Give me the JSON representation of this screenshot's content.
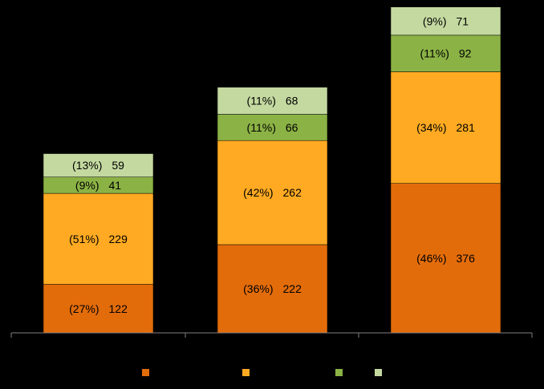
{
  "chart_data": {
    "type": "bar",
    "stacked": true,
    "categories": [
      "",
      "",
      ""
    ],
    "series": [
      {
        "values": [
          122,
          222,
          376
        ],
        "percent_labels": [
          "(27%)",
          "(36%)",
          "(46%)"
        ],
        "color": "#E36C0A"
      },
      {
        "values": [
          229,
          262,
          281
        ],
        "percent_labels": [
          "(51%)",
          "(42%)",
          "(34%)"
        ],
        "color": "#FFAA22"
      },
      {
        "values": [
          41,
          66,
          92
        ],
        "percent_labels": [
          "(9%)",
          "(11%)",
          "(11%)"
        ],
        "color": "#8BB245"
      },
      {
        "values": [
          59,
          68,
          71
        ],
        "percent_labels": [
          "(13%)",
          "(11%)",
          "(9%)"
        ],
        "color": "#C4D9A0"
      }
    ],
    "legend_position": "bottom",
    "grid": false,
    "background": "#000000",
    "axis_color": "#808080"
  }
}
